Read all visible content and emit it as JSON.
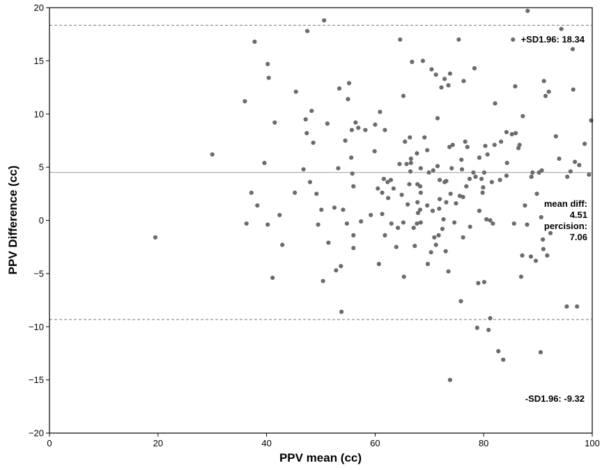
{
  "chart_data": {
    "type": "scatter",
    "title": "",
    "xlabel": "PPV mean (cc)",
    "ylabel": "PPV Difference (cc)",
    "xlim": [
      0,
      100
    ],
    "ylim": [
      -20,
      20
    ],
    "xticks": [
      0,
      20,
      40,
      60,
      80,
      100
    ],
    "yticks": [
      -20,
      -15,
      -10,
      -5,
      0,
      5,
      10,
      15,
      20
    ],
    "ytick_labels": [
      "−20",
      "−15",
      "−10",
      "−5",
      "0",
      "5",
      "10",
      "15",
      "20"
    ],
    "grid": false,
    "point_color": "#6b6b6b",
    "mean_line": {
      "y": 4.51,
      "color": "#b0b0b0",
      "style": "solid"
    },
    "upper_loa": {
      "y": 18.34,
      "color": "#909090",
      "style": "dashed"
    },
    "lower_loa": {
      "y": -9.32,
      "color": "#909090",
      "style": "dashed"
    },
    "annotations": {
      "upper": "+SD1.96: 18.34",
      "lower": "-SD1.96: -9.32",
      "mean_label": "mean diff:",
      "mean_value": "4.51",
      "precision_label": "percision:",
      "precision_value": "7.06"
    },
    "points": [
      [
        19.5,
        -1.6
      ],
      [
        30,
        6.2
      ],
      [
        36,
        11.2
      ],
      [
        36.3,
        -0.3
      ],
      [
        37.2,
        2.6
      ],
      [
        37.8,
        16.8
      ],
      [
        38.3,
        1.4
      ],
      [
        39.6,
        5.4
      ],
      [
        40.2,
        14.7
      ],
      [
        40.4,
        13.4
      ],
      [
        40.2,
        -0.4
      ],
      [
        41.1,
        -5.4
      ],
      [
        41.5,
        9.2
      ],
      [
        42.4,
        0.5
      ],
      [
        42.9,
        -2.3
      ],
      [
        45.2,
        2.6
      ],
      [
        45.4,
        12.1
      ],
      [
        46.8,
        4.8
      ],
      [
        47.2,
        9.5
      ],
      [
        47.4,
        8.2
      ],
      [
        47.5,
        17.8
      ],
      [
        48,
        3.6
      ],
      [
        48.3,
        10.3
      ],
      [
        48.6,
        7.3
      ],
      [
        49.2,
        2.5
      ],
      [
        49.5,
        -0.4
      ],
      [
        50.1,
        1
      ],
      [
        50.4,
        -5.7
      ],
      [
        50.6,
        18.8
      ],
      [
        51.2,
        9.1
      ],
      [
        51.4,
        -2.1
      ],
      [
        52.5,
        1.2
      ],
      [
        52.8,
        -4.7
      ],
      [
        53.2,
        4.9
      ],
      [
        53.4,
        12.4
      ],
      [
        53.7,
        -4.3
      ],
      [
        53.8,
        -8.6
      ],
      [
        54.1,
        1
      ],
      [
        54.5,
        7.5
      ],
      [
        54.8,
        -0.3
      ],
      [
        55,
        11.4
      ],
      [
        55.2,
        12.9
      ],
      [
        55.7,
        8.5
      ],
      [
        55.6,
        5.9
      ],
      [
        55.8,
        4.4
      ],
      [
        56,
        3.2
      ],
      [
        56,
        -1.4
      ],
      [
        56,
        -2.6
      ],
      [
        56.4,
        9.2
      ],
      [
        56.9,
        8.7
      ],
      [
        57.4,
        -0.1
      ],
      [
        58.2,
        8.5
      ],
      [
        59.2,
        0.5
      ],
      [
        59.9,
        6.5
      ],
      [
        60,
        9
      ],
      [
        60.5,
        3
      ],
      [
        60.7,
        -4.1
      ],
      [
        60.9,
        10.2
      ],
      [
        61.3,
        2.6
      ],
      [
        61.3,
        0.6
      ],
      [
        61.6,
        3.9
      ],
      [
        61.8,
        8.5
      ],
      [
        61.8,
        -1.4
      ],
      [
        62.3,
        3.6
      ],
      [
        62.4,
        2.1
      ],
      [
        62.9,
        3.8
      ],
      [
        63,
        -0.3
      ],
      [
        63.4,
        3
      ],
      [
        63.9,
        -2.5
      ],
      [
        64.2,
        -0.7
      ],
      [
        64.5,
        5.3
      ],
      [
        64.9,
        2.4
      ],
      [
        64.6,
        17
      ],
      [
        65.2,
        -0.2
      ],
      [
        65.2,
        11.7
      ],
      [
        65.3,
        -5.3
      ],
      [
        65.5,
        7.4
      ],
      [
        65.8,
        5.3
      ],
      [
        66,
        1.5
      ],
      [
        66.3,
        3.4
      ],
      [
        66.4,
        7.8
      ],
      [
        66.5,
        4.6
      ],
      [
        66.6,
        5.8
      ],
      [
        66.6,
        5.4
      ],
      [
        66.8,
        14.9
      ],
      [
        67.1,
        -0.7
      ],
      [
        67.3,
        -2.4
      ],
      [
        67.7,
        6.3
      ],
      [
        67.7,
        -0.3
      ],
      [
        67.8,
        3.4
      ],
      [
        67.8,
        1.7
      ],
      [
        67.9,
        0.7
      ],
      [
        68.3,
        3.2
      ],
      [
        68.3,
        1
      ],
      [
        68.4,
        -0.2
      ],
      [
        68.4,
        4.9
      ],
      [
        68.4,
        2.6
      ],
      [
        68.8,
        15
      ],
      [
        69.1,
        7.8
      ],
      [
        69.6,
        1.4
      ],
      [
        69.6,
        6.6
      ],
      [
        69.7,
        -4.1
      ],
      [
        69.9,
        4.5
      ],
      [
        70.3,
        -3
      ],
      [
        70.4,
        14.2
      ],
      [
        70.6,
        0.9
      ],
      [
        70.7,
        4.7
      ],
      [
        70.9,
        -1.6
      ],
      [
        71.2,
        13.7
      ],
      [
        71.2,
        -2.3
      ],
      [
        71.5,
        9.6
      ],
      [
        71.5,
        5.1
      ],
      [
        71.7,
        -1.4
      ],
      [
        71.8,
        1.1
      ],
      [
        71.9,
        3.8
      ],
      [
        71.9,
        2
      ],
      [
        72.2,
        12.5
      ],
      [
        72.4,
        -0.8
      ],
      [
        72.6,
        0.1
      ],
      [
        72.8,
        3.6
      ],
      [
        72.8,
        13.3
      ],
      [
        73,
        -2.9
      ],
      [
        73.1,
        1.7
      ],
      [
        73.1,
        3.7
      ],
      [
        73.5,
        12.7
      ],
      [
        73.5,
        -4.8
      ],
      [
        73.7,
        6.9
      ],
      [
        73.8,
        13.8
      ],
      [
        73.8,
        -15
      ],
      [
        73.9,
        2.5
      ],
      [
        74.1,
        4.9
      ],
      [
        74.3,
        7.1
      ],
      [
        74.6,
        -0.2
      ],
      [
        74.9,
        1.6
      ],
      [
        75.4,
        17
      ],
      [
        75.6,
        2.3
      ],
      [
        75.8,
        -7.6
      ],
      [
        75.9,
        5.7
      ],
      [
        76,
        4.8
      ],
      [
        76.2,
        2.2
      ],
      [
        76.2,
        -1.6
      ],
      [
        76.3,
        13.1
      ],
      [
        76.6,
        7.4
      ],
      [
        76.8,
        3.2
      ],
      [
        77,
        6.9
      ],
      [
        77.4,
        3.9
      ],
      [
        77.5,
        -0.6
      ],
      [
        78.1,
        4.5
      ],
      [
        78.3,
        14.3
      ],
      [
        78.5,
        4.1
      ],
      [
        78.8,
        -10.1
      ],
      [
        79,
        -5.9
      ],
      [
        79.2,
        0.9
      ],
      [
        79.2,
        5.9
      ],
      [
        79.6,
        3.9
      ],
      [
        79.8,
        2.6
      ],
      [
        79.9,
        3.1
      ],
      [
        80.1,
        -5.8
      ],
      [
        80.1,
        4.5
      ],
      [
        80.3,
        7
      ],
      [
        80.5,
        0.1
      ],
      [
        80.7,
        6.2
      ],
      [
        80.9,
        -10.3
      ],
      [
        81.2,
        -9.2
      ],
      [
        81.2,
        0
      ],
      [
        81.5,
        3.6
      ],
      [
        81.7,
        -0.3
      ],
      [
        82,
        7.1
      ],
      [
        82.1,
        11
      ],
      [
        82.7,
        -12.3
      ],
      [
        83,
        3.8
      ],
      [
        83.2,
        7.4
      ],
      [
        83.6,
        -13.1
      ],
      [
        84.2,
        8.3
      ],
      [
        84.2,
        4.2
      ],
      [
        84.3,
        5.4
      ],
      [
        85.2,
        8.1
      ],
      [
        85.4,
        17
      ],
      [
        85.6,
        -0.3
      ],
      [
        85.8,
        12.6
      ],
      [
        85.9,
        8.2
      ],
      [
        86.4,
        6.8
      ],
      [
        86.6,
        7.1
      ],
      [
        86.9,
        -5.3
      ],
      [
        87.1,
        -3.3
      ],
      [
        87.2,
        9.8
      ],
      [
        87.6,
        1.4
      ],
      [
        88,
        -0.4
      ],
      [
        88.1,
        19.7
      ],
      [
        88.7,
        -3.4
      ],
      [
        88.8,
        4.1
      ],
      [
        89,
        4.5
      ],
      [
        89.6,
        -3.8
      ],
      [
        89.8,
        2.5
      ],
      [
        90.2,
        4.5
      ],
      [
        90.5,
        -12.4
      ],
      [
        90.6,
        0.3
      ],
      [
        90.7,
        4.7
      ],
      [
        90.9,
        -1.8
      ],
      [
        91,
        -2.7
      ],
      [
        91.1,
        13.1
      ],
      [
        91.4,
        11.7
      ],
      [
        91.7,
        -3.3
      ],
      [
        92,
        12.1
      ],
      [
        92.3,
        -1.2
      ],
      [
        93.3,
        7.9
      ],
      [
        93.9,
        5.8
      ],
      [
        94.3,
        18
      ],
      [
        95.3,
        -8.1
      ],
      [
        95.4,
        4.1
      ],
      [
        96,
        4.6
      ],
      [
        96.4,
        16.1
      ],
      [
        96.5,
        12.3
      ],
      [
        96.8,
        5.5
      ],
      [
        97.2,
        -8.1
      ],
      [
        97.6,
        5.2
      ],
      [
        98.6,
        7.2
      ],
      [
        99.4,
        4.3
      ],
      [
        99.8,
        9.4
      ]
    ]
  }
}
